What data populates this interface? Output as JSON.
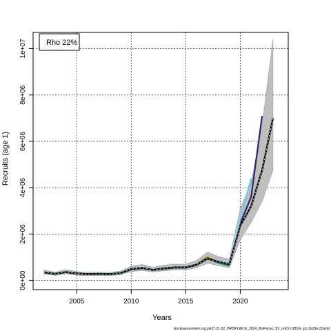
{
  "chart_data": {
    "type": "line",
    "legend_label": "Rho 22%",
    "xlabel": "Years",
    "ylabel": "Recruits (age 1)",
    "footer": "stockassessment.org,ple27.21-32_WKBPLAICE_2024_BioParsw_SV_nmO,r18514, git:c9c81ec53e0d",
    "xlim": [
      2001,
      2024.4
    ],
    "ylim": [
      -400000,
      10700000
    ],
    "grid": true,
    "legend_position": "top-left",
    "x_ticks": [
      2005,
      2010,
      2015,
      2020
    ],
    "x_tick_labels": [
      "2005",
      "2010",
      "2015",
      "2020"
    ],
    "y_ticks": [
      0,
      2000000,
      4000000,
      6000000,
      8000000,
      10000000
    ],
    "y_tick_labels": [
      "0e+00",
      "2e+06",
      "4e+06",
      "6e+06",
      "8e+06",
      "1e+07"
    ],
    "x": [
      2002,
      2003,
      2004,
      2005,
      2006,
      2007,
      2008,
      2009,
      2010,
      2011,
      2012,
      2013,
      2014,
      2015,
      2016,
      2017,
      2018,
      2019,
      2020,
      2021,
      2022,
      2023
    ],
    "base_estimate": [
      350000,
      280000,
      360000,
      300000,
      270000,
      280000,
      270000,
      310000,
      490000,
      540000,
      450000,
      520000,
      560000,
      560000,
      680000,
      950000,
      800000,
      700000,
      2350000,
      3200000,
      4750000,
      7000000
    ],
    "ci_lower": [
      270000,
      210000,
      280000,
      220000,
      200000,
      210000,
      200000,
      240000,
      380000,
      420000,
      360000,
      410000,
      450000,
      450000,
      540000,
      740000,
      640000,
      540000,
      1750000,
      2500000,
      3400000,
      4750000
    ],
    "ci_upper": [
      450000,
      360000,
      460000,
      380000,
      340000,
      360000,
      340000,
      400000,
      610000,
      690000,
      560000,
      660000,
      700000,
      700000,
      860000,
      1220000,
      1020000,
      920000,
      3100000,
      4200000,
      6700000,
      10400000
    ],
    "series": [
      {
        "color": "#2c237b",
        "x": [
          2002,
          2003,
          2004,
          2005,
          2006,
          2007,
          2008,
          2009,
          2010,
          2011,
          2012,
          2013,
          2014,
          2015,
          2016,
          2017,
          2018,
          2019,
          2020,
          2021,
          2022
        ],
        "values": [
          340000,
          270000,
          350000,
          290000,
          260000,
          270000,
          260000,
          300000,
          470000,
          520000,
          440000,
          500000,
          540000,
          540000,
          660000,
          930000,
          780000,
          690000,
          2450000,
          3600000,
          7100000
        ]
      },
      {
        "color": "#6fc9e6",
        "x": [
          2002,
          2003,
          2004,
          2005,
          2006,
          2007,
          2008,
          2009,
          2010,
          2011,
          2012,
          2013,
          2014,
          2015,
          2016,
          2017,
          2018,
          2019,
          2020,
          2021
        ],
        "values": [
          380000,
          300000,
          390000,
          320000,
          290000,
          300000,
          290000,
          330000,
          510000,
          570000,
          480000,
          540000,
          580000,
          580000,
          700000,
          990000,
          830000,
          720000,
          2650000,
          4400000
        ]
      },
      {
        "color": "#a6cee3",
        "x": [
          2002,
          2003,
          2004,
          2005,
          2006,
          2007,
          2008,
          2009,
          2010,
          2011,
          2012,
          2013,
          2014,
          2015,
          2016,
          2017,
          2018,
          2019,
          2020
        ],
        "values": [
          400000,
          320000,
          410000,
          330000,
          300000,
          310000,
          300000,
          340000,
          520000,
          580000,
          490000,
          550000,
          600000,
          600000,
          710000,
          1000000,
          850000,
          740000,
          2800000
        ]
      },
      {
        "color": "#00796b",
        "x": [
          2002,
          2003,
          2004,
          2005,
          2006,
          2007,
          2008,
          2009,
          2010,
          2011,
          2012,
          2013,
          2014,
          2015,
          2016,
          2017,
          2018,
          2019
        ],
        "values": [
          340000,
          270000,
          350000,
          290000,
          265000,
          275000,
          265000,
          305000,
          480000,
          530000,
          445000,
          510000,
          550000,
          550000,
          670000,
          940000,
          760000,
          640000
        ]
      },
      {
        "color": "#c9a227",
        "x": [
          2002,
          2003,
          2004,
          2005,
          2006,
          2007,
          2008,
          2009,
          2010,
          2011,
          2012,
          2013,
          2014,
          2015,
          2016,
          2017,
          2018
        ],
        "values": [
          350000,
          280000,
          360000,
          300000,
          272000,
          282000,
          272000,
          312000,
          495000,
          545000,
          455000,
          525000,
          565000,
          565000,
          700000,
          1010000,
          790000
        ]
      },
      {
        "color": "#6a8c2a",
        "x": [
          2002,
          2003,
          2004,
          2005,
          2006,
          2007,
          2008,
          2009,
          2010,
          2011,
          2012,
          2013,
          2014,
          2015,
          2016,
          2017
        ],
        "values": [
          345000,
          275000,
          355000,
          295000,
          268000,
          278000,
          268000,
          308000,
          488000,
          538000,
          448000,
          515000,
          555000,
          555000,
          690000,
          980000
        ]
      }
    ]
  }
}
